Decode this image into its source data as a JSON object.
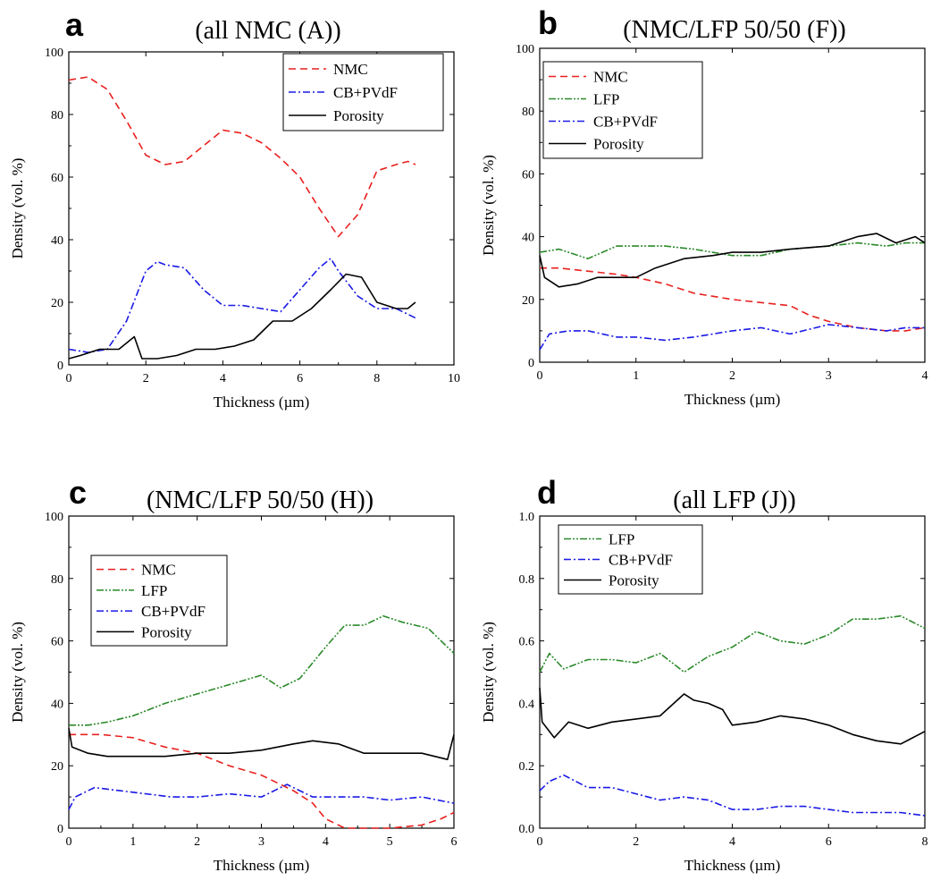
{
  "charts": [
    {
      "panel_letter": "a",
      "title": "(all NMC (A))",
      "xlabel": "Thickness (µm)",
      "ylabel": "Density (vol. %)",
      "xticks": [
        "0",
        "2",
        "4",
        "6",
        "8",
        "10"
      ],
      "yticks": [
        "0",
        "20",
        "40",
        "60",
        "80",
        "100"
      ]
    },
    {
      "panel_letter": "b",
      "title": "(NMC/LFP 50/50 (F))",
      "xlabel": "Thickness (µm)",
      "ylabel": "Density (vol. %)",
      "xticks": [
        "0",
        "1",
        "2",
        "3",
        "4"
      ],
      "yticks": [
        "0",
        "20",
        "40",
        "60",
        "80",
        "100"
      ]
    },
    {
      "panel_letter": "c",
      "title": "(NMC/LFP 50/50 (H))",
      "xlabel": "Thickness (µm)",
      "ylabel": "Density (vol. %)",
      "xticks": [
        "0",
        "1",
        "2",
        "3",
        "4",
        "5",
        "6"
      ],
      "yticks": [
        "0",
        "20",
        "40",
        "60",
        "80",
        "100"
      ]
    },
    {
      "panel_letter": "d",
      "title": "(all LFP (J))",
      "xlabel": "Thickness (µm)",
      "ylabel": "Density (vol. %)",
      "xticks": [
        "0",
        "2",
        "4",
        "6",
        "8"
      ],
      "yticks": [
        "0.0",
        "0.2",
        "0.4",
        "0.6",
        "0.8",
        "1.0"
      ]
    }
  ],
  "chart_data": [
    {
      "type": "line",
      "title": "(all NMC (A))",
      "xlabel": "Thickness (µm)",
      "ylabel": "Density (vol. %)",
      "xlim": [
        0,
        10
      ],
      "ylim": [
        0,
        100
      ],
      "legend_position": "top-right",
      "series": [
        {
          "name": "NMC",
          "color": "#e8201e",
          "dash": "dashed",
          "x": [
            0,
            0.5,
            1.0,
            1.5,
            2.0,
            2.5,
            3.0,
            3.5,
            4.0,
            4.5,
            5.0,
            5.5,
            6.0,
            6.5,
            7.0,
            7.5,
            8.0,
            8.5,
            8.8,
            9.0
          ],
          "y": [
            91,
            92,
            88,
            78,
            67,
            64,
            65,
            70,
            75,
            74,
            71,
            66,
            60,
            50,
            41,
            48,
            62,
            64,
            65,
            64
          ]
        },
        {
          "name": "CB+PVdF",
          "color": "#1a1ae6",
          "dash": "dashdot",
          "x": [
            0,
            0.5,
            1.0,
            1.5,
            2.0,
            2.3,
            2.5,
            3.0,
            3.5,
            4.0,
            4.5,
            5.0,
            5.5,
            6.0,
            6.5,
            6.8,
            7.0,
            7.5,
            8.0,
            8.5,
            9.0
          ],
          "y": [
            5,
            4,
            5,
            14,
            30,
            33,
            32,
            31,
            24,
            19,
            19,
            18,
            17,
            24,
            31,
            34,
            30,
            22,
            18,
            18,
            15
          ]
        },
        {
          "name": "Porosity",
          "color": "#000000",
          "dash": "solid",
          "x": [
            0,
            0.3,
            0.8,
            1.3,
            1.7,
            1.9,
            2.3,
            2.8,
            3.3,
            3.8,
            4.3,
            4.8,
            5.3,
            5.8,
            6.3,
            6.8,
            7.2,
            7.6,
            8.0,
            8.5,
            8.8,
            9.0
          ],
          "y": [
            2,
            3,
            5,
            5,
            9,
            2,
            2,
            3,
            5,
            5,
            6,
            8,
            14,
            14,
            18,
            24,
            29,
            28,
            20,
            18,
            18,
            20
          ]
        }
      ]
    },
    {
      "type": "line",
      "title": "(NMC/LFP 50/50 (F))",
      "xlabel": "Thickness (µm)",
      "ylabel": "Density (vol. %)",
      "xlim": [
        0,
        4
      ],
      "ylim": [
        0,
        100
      ],
      "legend_position": "top-left",
      "series": [
        {
          "name": "NMC",
          "color": "#e8201e",
          "dash": "dashed",
          "x": [
            0,
            0.2,
            0.5,
            0.8,
            1.0,
            1.3,
            1.6,
            2.0,
            2.3,
            2.6,
            2.8,
            3.0,
            3.3,
            3.6,
            3.8,
            4.0
          ],
          "y": [
            30,
            30,
            29,
            28,
            27,
            25,
            22,
            20,
            19,
            18,
            15,
            13,
            11,
            10,
            10,
            11
          ]
        },
        {
          "name": "LFP",
          "color": "#2a8a2a",
          "dash": "dashdotdot",
          "x": [
            0,
            0.2,
            0.5,
            0.8,
            1.0,
            1.3,
            1.6,
            2.0,
            2.3,
            2.6,
            3.0,
            3.3,
            3.6,
            3.8,
            4.0
          ],
          "y": [
            35,
            36,
            33,
            37,
            37,
            37,
            36,
            34,
            34,
            36,
            37,
            38,
            37,
            38,
            38
          ]
        },
        {
          "name": "CB+PVdF",
          "color": "#1a1ae6",
          "dash": "dashdot",
          "x": [
            0,
            0.1,
            0.3,
            0.5,
            0.8,
            1.0,
            1.3,
            1.6,
            2.0,
            2.3,
            2.6,
            3.0,
            3.3,
            3.6,
            3.8,
            4.0
          ],
          "y": [
            4,
            9,
            10,
            10,
            8,
            8,
            7,
            8,
            10,
            11,
            9,
            12,
            11,
            10,
            11,
            11
          ]
        },
        {
          "name": "Porosity",
          "color": "#000000",
          "dash": "solid",
          "x": [
            0,
            0.05,
            0.2,
            0.4,
            0.6,
            0.8,
            1.0,
            1.2,
            1.5,
            1.8,
            2.0,
            2.3,
            2.6,
            3.0,
            3.3,
            3.5,
            3.7,
            3.9,
            4.0
          ],
          "y": [
            34,
            27,
            24,
            25,
            27,
            27,
            27,
            30,
            33,
            34,
            35,
            35,
            36,
            37,
            40,
            41,
            38,
            40,
            38
          ]
        }
      ]
    },
    {
      "type": "line",
      "title": "(NMC/LFP 50/50 (H))",
      "xlabel": "Thickness (µm)",
      "ylabel": "Density (vol. %)",
      "xlim": [
        0,
        6
      ],
      "ylim": [
        0,
        100
      ],
      "legend_position": "top-left",
      "series": [
        {
          "name": "NMC",
          "color": "#e8201e",
          "dash": "dashed",
          "x": [
            0,
            0.5,
            1.0,
            1.5,
            2.0,
            2.5,
            3.0,
            3.5,
            3.8,
            4.0,
            4.3,
            4.6,
            5.0,
            5.5,
            5.8,
            6.0
          ],
          "y": [
            30,
            30,
            29,
            26,
            24,
            20,
            17,
            12,
            8,
            3,
            0,
            0,
            0,
            1,
            3,
            5
          ]
        },
        {
          "name": "LFP",
          "color": "#2a8a2a",
          "dash": "dashdotdot",
          "x": [
            0,
            0.3,
            0.6,
            1.0,
            1.5,
            2.0,
            2.5,
            3.0,
            3.3,
            3.6,
            4.0,
            4.3,
            4.6,
            4.9,
            5.2,
            5.6,
            6.0
          ],
          "y": [
            33,
            33,
            34,
            36,
            40,
            43,
            46,
            49,
            45,
            48,
            58,
            65,
            65,
            68,
            66,
            64,
            56
          ]
        },
        {
          "name": "CB+PVdF",
          "color": "#1a1ae6",
          "dash": "dashdot",
          "x": [
            0,
            0.1,
            0.4,
            0.8,
            1.2,
            1.6,
            2.0,
            2.5,
            3.0,
            3.4,
            3.8,
            4.2,
            4.6,
            5.0,
            5.5,
            6.0
          ],
          "y": [
            6,
            10,
            13,
            12,
            11,
            10,
            10,
            11,
            10,
            14,
            10,
            10,
            10,
            9,
            10,
            8
          ]
        },
        {
          "name": "Porosity",
          "color": "#000000",
          "dash": "solid",
          "x": [
            0,
            0.05,
            0.3,
            0.6,
            1.0,
            1.5,
            2.0,
            2.5,
            3.0,
            3.5,
            3.8,
            4.2,
            4.6,
            5.0,
            5.5,
            5.9,
            6.0
          ],
          "y": [
            32,
            26,
            24,
            23,
            23,
            23,
            24,
            24,
            25,
            27,
            28,
            27,
            24,
            24,
            24,
            22,
            30
          ]
        }
      ]
    },
    {
      "type": "line",
      "title": "(all LFP (J))",
      "xlabel": "Thickness (µm)",
      "ylabel": "Density (vol. %)",
      "xlim": [
        0,
        8
      ],
      "ylim": [
        0,
        1.0
      ],
      "legend_position": "top-left",
      "series": [
        {
          "name": "LFP",
          "color": "#2a8a2a",
          "dash": "dashdotdot",
          "x": [
            0,
            0.2,
            0.5,
            1.0,
            1.5,
            2.0,
            2.5,
            3.0,
            3.5,
            4.0,
            4.5,
            5.0,
            5.5,
            6.0,
            6.5,
            7.0,
            7.5,
            8.0
          ],
          "y": [
            0.5,
            0.56,
            0.51,
            0.54,
            0.54,
            0.53,
            0.56,
            0.5,
            0.55,
            0.58,
            0.63,
            0.6,
            0.59,
            0.62,
            0.67,
            0.67,
            0.68,
            0.64
          ]
        },
        {
          "name": "CB+PVdF",
          "color": "#1a1ae6",
          "dash": "dashdot",
          "x": [
            0,
            0.2,
            0.5,
            1.0,
            1.5,
            2.0,
            2.5,
            3.0,
            3.5,
            4.0,
            4.5,
            5.0,
            5.5,
            6.0,
            6.5,
            7.0,
            7.5,
            8.0
          ],
          "y": [
            0.12,
            0.15,
            0.17,
            0.13,
            0.13,
            0.11,
            0.09,
            0.1,
            0.09,
            0.06,
            0.06,
            0.07,
            0.07,
            0.06,
            0.05,
            0.05,
            0.05,
            0.04
          ]
        },
        {
          "name": "Porosity",
          "color": "#000000",
          "dash": "solid",
          "x": [
            0,
            0.05,
            0.3,
            0.6,
            1.0,
            1.5,
            2.0,
            2.5,
            3.0,
            3.2,
            3.5,
            3.8,
            4.0,
            4.5,
            5.0,
            5.5,
            6.0,
            6.5,
            7.0,
            7.5,
            8.0
          ],
          "y": [
            0.45,
            0.34,
            0.29,
            0.34,
            0.32,
            0.34,
            0.35,
            0.36,
            0.43,
            0.41,
            0.4,
            0.38,
            0.33,
            0.34,
            0.36,
            0.35,
            0.33,
            0.3,
            0.28,
            0.27,
            0.31
          ]
        }
      ]
    }
  ]
}
